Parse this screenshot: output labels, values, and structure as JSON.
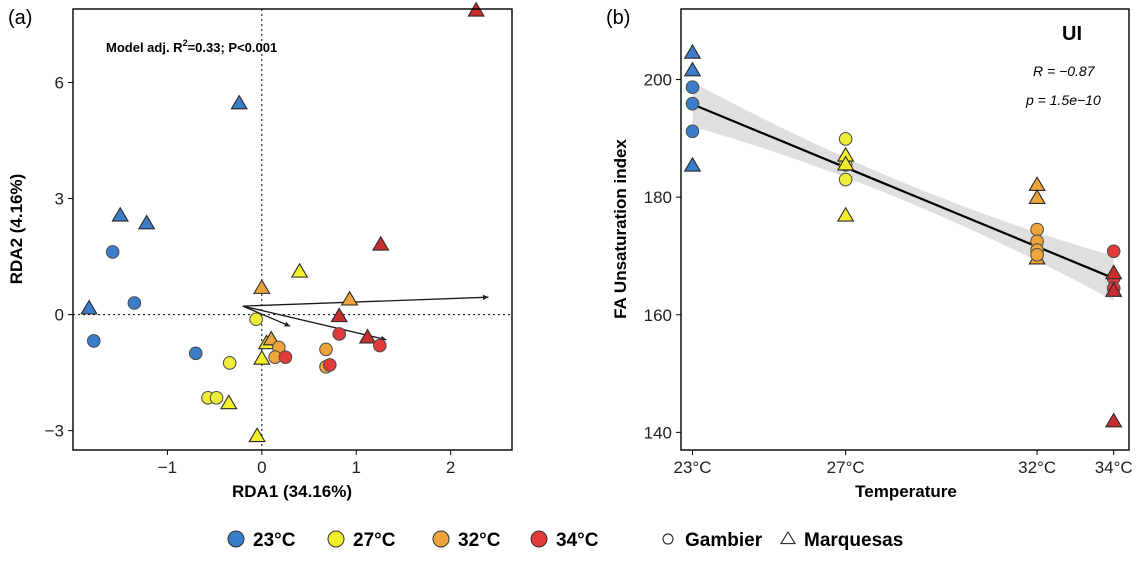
{
  "colors": {
    "23°C": "#3b7dc8",
    "27°C": "#f3ef2a",
    "32°C": "#eda43a",
    "34°C": "#e23a3a",
    "34°C_marquesas": "#c92e2e",
    "27°C_gambier_fill": "#f0ec3a",
    "regression_line": "#000000",
    "confidence_band": "#d9d9d9"
  },
  "panel_a": {
    "label": "(a)",
    "annotation_prefix": "Model adj. R",
    "annotation_sup": "2",
    "annotation_suffix": "=0.33; P<0.001"
  },
  "panel_b": {
    "label": "(b)",
    "title": "UI",
    "stat_r": "R = −0.87",
    "stat_p": "p = 1.5e−10"
  },
  "legend": {
    "temps": [
      "23°C",
      "27°C",
      "32°C",
      "34°C"
    ],
    "sites": [
      "Gambier",
      "Marquesas"
    ]
  },
  "chart_data": [
    {
      "type": "scatter",
      "title": "",
      "xlabel": "RDA1 (34.16%)",
      "ylabel": "RDA2 (4.16%)",
      "xlim": [
        -2.0,
        2.65
      ],
      "ylim": [
        -3.5,
        7.9
      ],
      "xticks": [
        -1,
        0,
        1,
        2
      ],
      "xtick_labels": [
        "−1",
        "0",
        "1",
        "2"
      ],
      "yticks": [
        -3,
        0,
        3,
        6
      ],
      "ytick_labels": [
        "−3",
        "0",
        "3",
        "6"
      ],
      "reference_lines": {
        "x": 0,
        "y": 0,
        "style": "dotted"
      },
      "points": [
        {
          "x": -0.24,
          "y": 5.45,
          "temp": "23°C",
          "site": "Marquesas"
        },
        {
          "x": -1.5,
          "y": 2.55,
          "temp": "23°C",
          "site": "Marquesas"
        },
        {
          "x": -1.22,
          "y": 2.35,
          "temp": "23°C",
          "site": "Marquesas"
        },
        {
          "x": -1.83,
          "y": 0.15,
          "temp": "23°C",
          "site": "Marquesas"
        },
        {
          "x": -1.58,
          "y": 1.62,
          "temp": "23°C",
          "site": "Gambier"
        },
        {
          "x": -1.35,
          "y": 0.3,
          "temp": "23°C",
          "site": "Gambier"
        },
        {
          "x": -1.78,
          "y": -0.68,
          "temp": "23°C",
          "site": "Gambier"
        },
        {
          "x": -0.7,
          "y": -1.0,
          "temp": "23°C",
          "site": "Gambier"
        },
        {
          "x": -0.06,
          "y": -0.12,
          "temp": "27°C",
          "site": "Gambier"
        },
        {
          "x": -0.34,
          "y": -1.25,
          "temp": "27°C",
          "site": "Gambier"
        },
        {
          "x": -0.57,
          "y": -2.15,
          "temp": "27°C",
          "site": "Gambier"
        },
        {
          "x": -0.48,
          "y": -2.15,
          "temp": "27°C",
          "site": "Gambier"
        },
        {
          "x": -0.35,
          "y": -2.3,
          "temp": "27°C",
          "site": "Marquesas"
        },
        {
          "x": -0.05,
          "y": -3.15,
          "temp": "27°C",
          "site": "Marquesas"
        },
        {
          "x": 0.0,
          "y": -1.15,
          "temp": "27°C",
          "site": "Marquesas"
        },
        {
          "x": 0.05,
          "y": -0.75,
          "temp": "27°C",
          "site": "Marquesas"
        },
        {
          "x": 0.4,
          "y": 1.1,
          "temp": "27°C",
          "site": "Marquesas"
        },
        {
          "x": 0.0,
          "y": 0.68,
          "temp": "32°C",
          "site": "Marquesas"
        },
        {
          "x": 0.93,
          "y": 0.38,
          "temp": "32°C",
          "site": "Marquesas"
        },
        {
          "x": 0.1,
          "y": -0.65,
          "temp": "32°C",
          "site": "Marquesas"
        },
        {
          "x": 0.18,
          "y": -0.85,
          "temp": "32°C",
          "site": "Gambier"
        },
        {
          "x": 0.14,
          "y": -1.1,
          "temp": "32°C",
          "site": "Gambier"
        },
        {
          "x": 0.68,
          "y": -0.9,
          "temp": "32°C",
          "site": "Gambier"
        },
        {
          "x": 0.68,
          "y": -1.35,
          "temp": "32°C",
          "site": "Gambier"
        },
        {
          "x": 2.27,
          "y": 7.85,
          "temp": "34°C",
          "site": "Marquesas"
        },
        {
          "x": 1.26,
          "y": 1.8,
          "temp": "34°C",
          "site": "Marquesas"
        },
        {
          "x": 0.82,
          "y": -0.05,
          "temp": "34°C",
          "site": "Marquesas"
        },
        {
          "x": 1.12,
          "y": -0.6,
          "temp": "34°C",
          "site": "Marquesas"
        },
        {
          "x": 0.82,
          "y": -0.5,
          "temp": "34°C",
          "site": "Gambier"
        },
        {
          "x": 1.25,
          "y": -0.8,
          "temp": "34°C",
          "site": "Gambier"
        },
        {
          "x": 0.72,
          "y": -1.3,
          "temp": "34°C",
          "site": "Gambier"
        },
        {
          "x": 0.25,
          "y": -1.1,
          "temp": "34°C",
          "site": "Gambier"
        }
      ],
      "arrows": [
        {
          "x0": -0.2,
          "y0": 0.22,
          "x1": 2.4,
          "y1": 0.45
        },
        {
          "x0": -0.2,
          "y0": 0.22,
          "x1": 1.32,
          "y1": -0.65
        },
        {
          "x0": -0.2,
          "y0": 0.22,
          "x1": 0.3,
          "y1": -0.3
        }
      ]
    },
    {
      "type": "scatter",
      "title": "UI",
      "xlabel": "Temperature",
      "ylabel": "FA Unsaturation index",
      "xlim": [
        22.7,
        34.4
      ],
      "ylim": [
        137,
        212
      ],
      "x_tick_values": [
        23,
        27,
        32,
        34
      ],
      "x_tick_labels": [
        "23°C",
        "27°C",
        "32°C",
        "34°C"
      ],
      "yticks": [
        140,
        160,
        180,
        200
      ],
      "regression": {
        "x0": 23,
        "y0": 195.8,
        "x1": 34,
        "y1": 166.2,
        "ci_halfwidth_ends": 3.8,
        "ci_halfwidth_mid": 1.5
      },
      "points": [
        {
          "x": 23,
          "y": 204.5,
          "temp": "23°C",
          "site": "Marquesas"
        },
        {
          "x": 23,
          "y": 201.5,
          "temp": "23°C",
          "site": "Marquesas"
        },
        {
          "x": 23,
          "y": 185.3,
          "temp": "23°C",
          "site": "Marquesas"
        },
        {
          "x": 23,
          "y": 198.7,
          "temp": "23°C",
          "site": "Gambier"
        },
        {
          "x": 23,
          "y": 195.9,
          "temp": "23°C",
          "site": "Gambier"
        },
        {
          "x": 23,
          "y": 191.2,
          "temp": "23°C",
          "site": "Gambier"
        },
        {
          "x": 27,
          "y": 189.9,
          "temp": "27°C",
          "site": "Gambier"
        },
        {
          "x": 27,
          "y": 185.5,
          "temp": "27°C",
          "site": "Gambier"
        },
        {
          "x": 27,
          "y": 183.0,
          "temp": "27°C",
          "site": "Gambier"
        },
        {
          "x": 27,
          "y": 187.0,
          "temp": "27°C",
          "site": "Marquesas"
        },
        {
          "x": 27,
          "y": 185.5,
          "temp": "27°C",
          "site": "Marquesas"
        },
        {
          "x": 27,
          "y": 176.8,
          "temp": "27°C",
          "site": "Marquesas"
        },
        {
          "x": 32,
          "y": 182.0,
          "temp": "32°C",
          "site": "Marquesas"
        },
        {
          "x": 32,
          "y": 179.8,
          "temp": "32°C",
          "site": "Marquesas"
        },
        {
          "x": 32,
          "y": 169.5,
          "temp": "32°C",
          "site": "Marquesas"
        },
        {
          "x": 32,
          "y": 174.5,
          "temp": "32°C",
          "site": "Gambier"
        },
        {
          "x": 32,
          "y": 172.5,
          "temp": "32°C",
          "site": "Gambier"
        },
        {
          "x": 32,
          "y": 171.0,
          "temp": "32°C",
          "site": "Gambier"
        },
        {
          "x": 32,
          "y": 170.2,
          "temp": "32°C",
          "site": "Gambier"
        },
        {
          "x": 34,
          "y": 170.8,
          "temp": "34°C",
          "site": "Gambier"
        },
        {
          "x": 34,
          "y": 166.2,
          "temp": "34°C",
          "site": "Gambier"
        },
        {
          "x": 34,
          "y": 164.5,
          "temp": "34°C",
          "site": "Gambier"
        },
        {
          "x": 34,
          "y": 167.0,
          "temp": "34°C",
          "site": "Marquesas"
        },
        {
          "x": 34,
          "y": 164.0,
          "temp": "34°C",
          "site": "Marquesas"
        },
        {
          "x": 34,
          "y": 141.8,
          "temp": "34°C",
          "site": "Marquesas"
        }
      ]
    }
  ]
}
